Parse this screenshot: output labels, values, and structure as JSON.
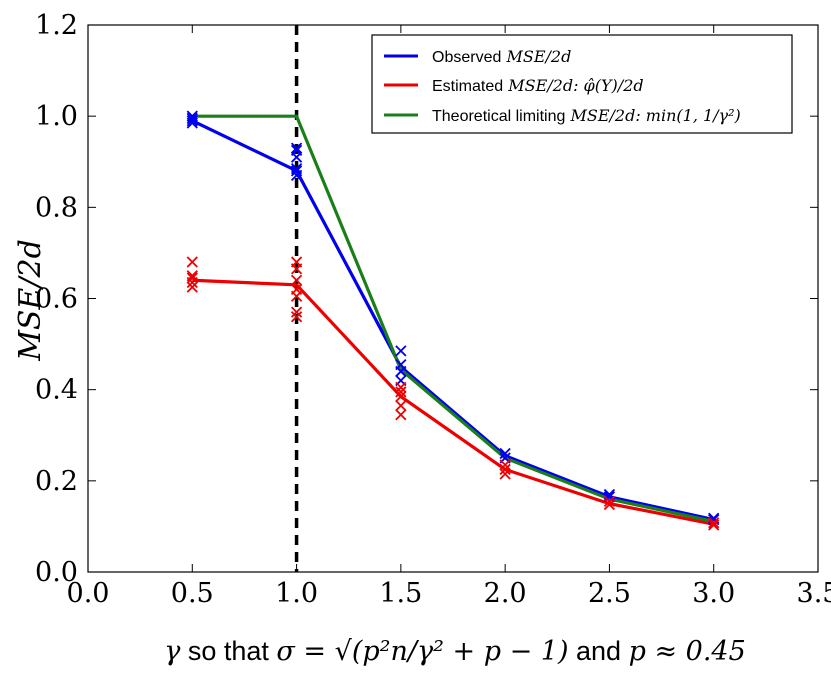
{
  "chart_data": {
    "type": "line",
    "title": "",
    "xlabel": {
      "prefix": "γ",
      "text1": " so that ",
      "math": "σ = √(p²n/γ² + p − 1)",
      "text2": " and ",
      "math2": "p ≈ 0.45"
    },
    "ylabel": "MSE/2d",
    "xlim": [
      0.0,
      3.5
    ],
    "ylim": [
      0.0,
      1.2
    ],
    "xticks": [
      "0.0",
      "0.5",
      "1.0",
      "1.5",
      "2.0",
      "2.5",
      "3.0",
      "3.5"
    ],
    "yticks": [
      "0.0",
      "0.2",
      "0.4",
      "0.6",
      "0.8",
      "1.0",
      "1.2"
    ],
    "vline": {
      "x": 1.0,
      "style": "dashed",
      "color": "#000000"
    },
    "legend": {
      "position": "top-right",
      "entries": [
        {
          "name": "Observed",
          "math": "MSE/2d",
          "color": "#0000ee"
        },
        {
          "name": "Estimated",
          "math": "MSE/2d: φ̂(Y)/2d",
          "color": "#ee0000"
        },
        {
          "name": "Theoretical limiting",
          "math": "MSE/2d: min(1, 1/γ²)",
          "color": "#1a7f1a"
        }
      ]
    },
    "series": [
      {
        "name": "Observed",
        "color": "#0000ee",
        "x": [
          0.5,
          1.0,
          1.5,
          2.0,
          2.5,
          3.0
        ],
        "y": [
          0.99,
          0.88,
          0.45,
          0.255,
          0.165,
          0.115
        ],
        "scatter": [
          [
            0.5,
            0.985
          ],
          [
            0.5,
            0.99
          ],
          [
            0.5,
            0.995
          ],
          [
            0.5,
            1.0
          ],
          [
            1.0,
            0.87
          ],
          [
            1.0,
            0.88
          ],
          [
            1.0,
            0.885
          ],
          [
            1.0,
            0.91
          ],
          [
            1.0,
            0.925
          ],
          [
            1.0,
            0.93
          ],
          [
            1.5,
            0.42
          ],
          [
            1.5,
            0.44
          ],
          [
            1.5,
            0.455
          ],
          [
            1.5,
            0.485
          ],
          [
            2.0,
            0.25
          ],
          [
            2.0,
            0.26
          ],
          [
            2.5,
            0.165
          ],
          [
            2.5,
            0.17
          ],
          [
            3.0,
            0.115
          ],
          [
            3.0,
            0.118
          ]
        ]
      },
      {
        "name": "Estimated",
        "color": "#ee0000",
        "x": [
          0.5,
          1.0,
          1.5,
          2.0,
          2.5,
          3.0
        ],
        "y": [
          0.64,
          0.63,
          0.385,
          0.225,
          0.15,
          0.105
        ],
        "scatter": [
          [
            0.5,
            0.625
          ],
          [
            0.5,
            0.635
          ],
          [
            0.5,
            0.645
          ],
          [
            0.5,
            0.65
          ],
          [
            0.5,
            0.68
          ],
          [
            1.0,
            0.56
          ],
          [
            1.0,
            0.57
          ],
          [
            1.0,
            0.605
          ],
          [
            1.0,
            0.62
          ],
          [
            1.0,
            0.64
          ],
          [
            1.0,
            0.665
          ],
          [
            1.0,
            0.68
          ],
          [
            1.5,
            0.345
          ],
          [
            1.5,
            0.365
          ],
          [
            1.5,
            0.385
          ],
          [
            1.5,
            0.395
          ],
          [
            1.5,
            0.405
          ],
          [
            2.0,
            0.215
          ],
          [
            2.0,
            0.225
          ],
          [
            2.0,
            0.235
          ],
          [
            2.5,
            0.148
          ],
          [
            2.5,
            0.155
          ],
          [
            3.0,
            0.103
          ],
          [
            3.0,
            0.108
          ]
        ]
      },
      {
        "name": "Theoretical limiting",
        "color": "#1a7f1a",
        "x": [
          0.5,
          1.0,
          1.5,
          2.0,
          2.5,
          3.0
        ],
        "y": [
          1.0,
          1.0,
          0.444,
          0.25,
          0.16,
          0.111
        ],
        "scatter": []
      }
    ]
  }
}
